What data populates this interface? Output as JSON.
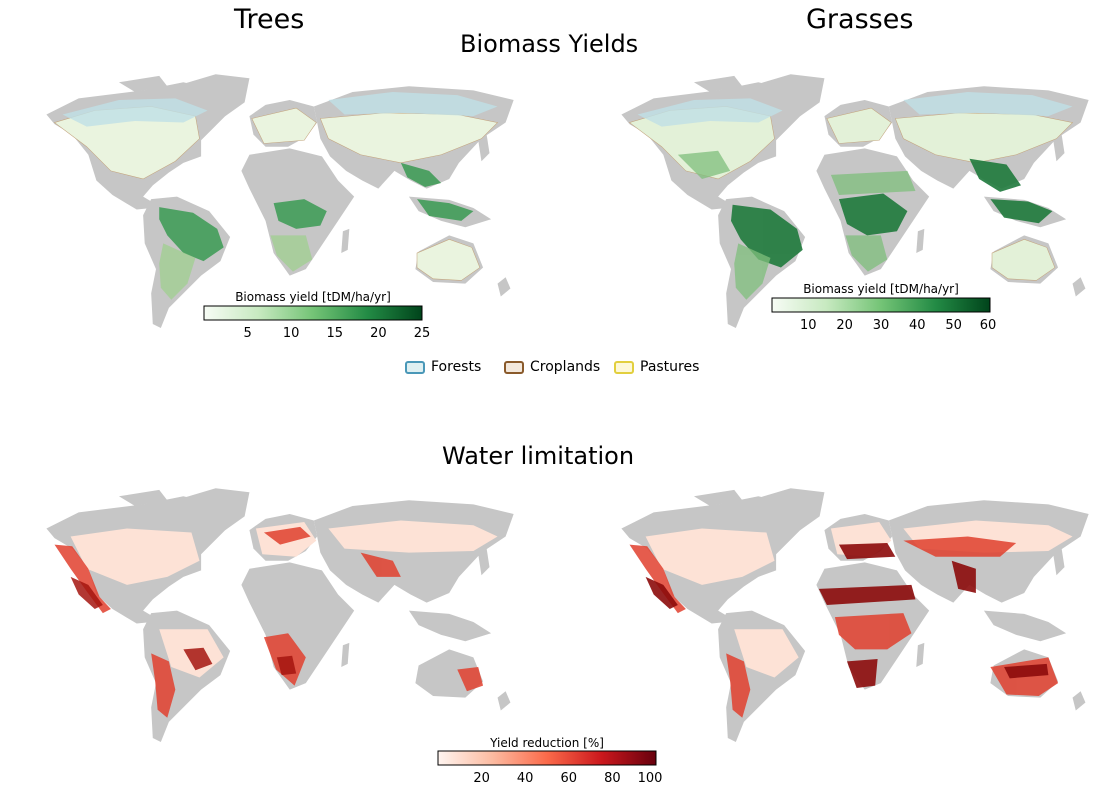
{
  "titles": {
    "trees": "Trees",
    "grasses": "Grasses",
    "biomass": "Biomass Yields",
    "water": "Water limitation"
  },
  "colorbars": {
    "trees": {
      "label": "Biomass yield [tDM/ha/yr]",
      "ticks": [
        "5",
        "10",
        "15",
        "20",
        "25"
      ],
      "range": [
        0,
        25
      ],
      "colors": [
        "#f7fcf5",
        "#c7e9c0",
        "#74c476",
        "#238b45",
        "#00441b"
      ]
    },
    "grasses": {
      "label": "Biomass yield [tDM/ha/yr]",
      "ticks": [
        "10",
        "20",
        "30",
        "40",
        "50",
        "60"
      ],
      "range": [
        0,
        60
      ],
      "colors": [
        "#f7fcf5",
        "#c7e9c0",
        "#74c476",
        "#238b45",
        "#00441b"
      ]
    },
    "water": {
      "label": "Yield reduction [%]",
      "ticks": [
        "20",
        "40",
        "60",
        "80",
        "100"
      ],
      "range": [
        0,
        100
      ],
      "colors": [
        "#fff5f0",
        "#fcbba1",
        "#fb6a4a",
        "#cb181d",
        "#67000d"
      ]
    }
  },
  "legend": {
    "items": [
      {
        "label": "Forests",
        "fill": "#dff0f2",
        "stroke": "#4a98b8"
      },
      {
        "label": "Croplands",
        "fill": "#f3e8dc",
        "stroke": "#8a5a2b"
      },
      {
        "label": "Pastures",
        "fill": "#fdf8d8",
        "stroke": "#e2cf3e"
      }
    ]
  },
  "colors": {
    "land_gray": "#c6c6c6",
    "tree_green": "#78b878",
    "grass_green": "#52a45c",
    "water_red": "#e0402e"
  }
}
